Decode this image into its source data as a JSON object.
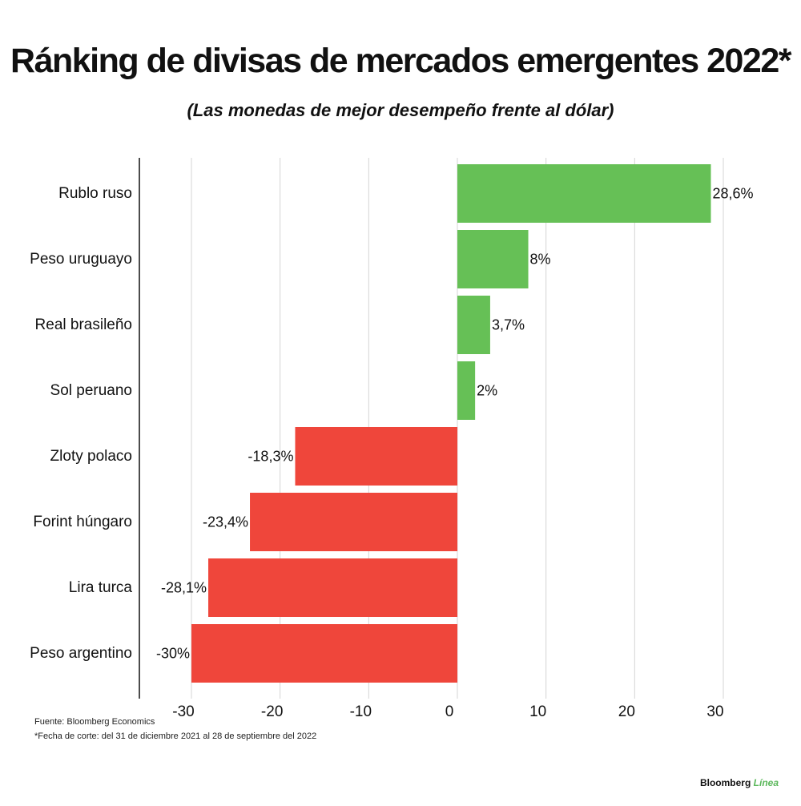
{
  "chart_data": {
    "type": "bar",
    "orientation": "horizontal",
    "title": "Ránking de divisas de mercados emergentes 2022*",
    "subtitle": "(Las monedas de mejor desempeño frente al dólar)",
    "categories": [
      "Rublo ruso",
      "Peso uruguayo",
      "Real brasileño",
      "Sol peruano",
      "Zloty polaco",
      "Forint húngaro",
      "Lira turca",
      "Peso argentino"
    ],
    "values": [
      28.6,
      8,
      3.7,
      2,
      -18.3,
      -23.4,
      -28.1,
      -30
    ],
    "value_labels": [
      "28,6%",
      "8%",
      "3,7%",
      "2%",
      "-18,3%",
      "-23,4%",
      "-28,1%",
      "-30%"
    ],
    "xlim": [
      -30,
      30
    ],
    "xticks": [
      -30,
      -20,
      -10,
      0,
      10,
      20,
      30
    ],
    "tick_labels": [
      "-30",
      "-20",
      "-10",
      "0",
      "10",
      "20",
      "30"
    ],
    "grid": true,
    "colors": {
      "positive": "#66c056",
      "negative": "#ef463b"
    }
  },
  "footer": {
    "source": "Fuente: Bloomberg Economics",
    "footnote": "*Fecha de corte: del 31 de diciembre 2021 al 28 de septiembre del 2022",
    "logo_brand": "Bloomberg",
    "logo_linea": "Línea"
  }
}
